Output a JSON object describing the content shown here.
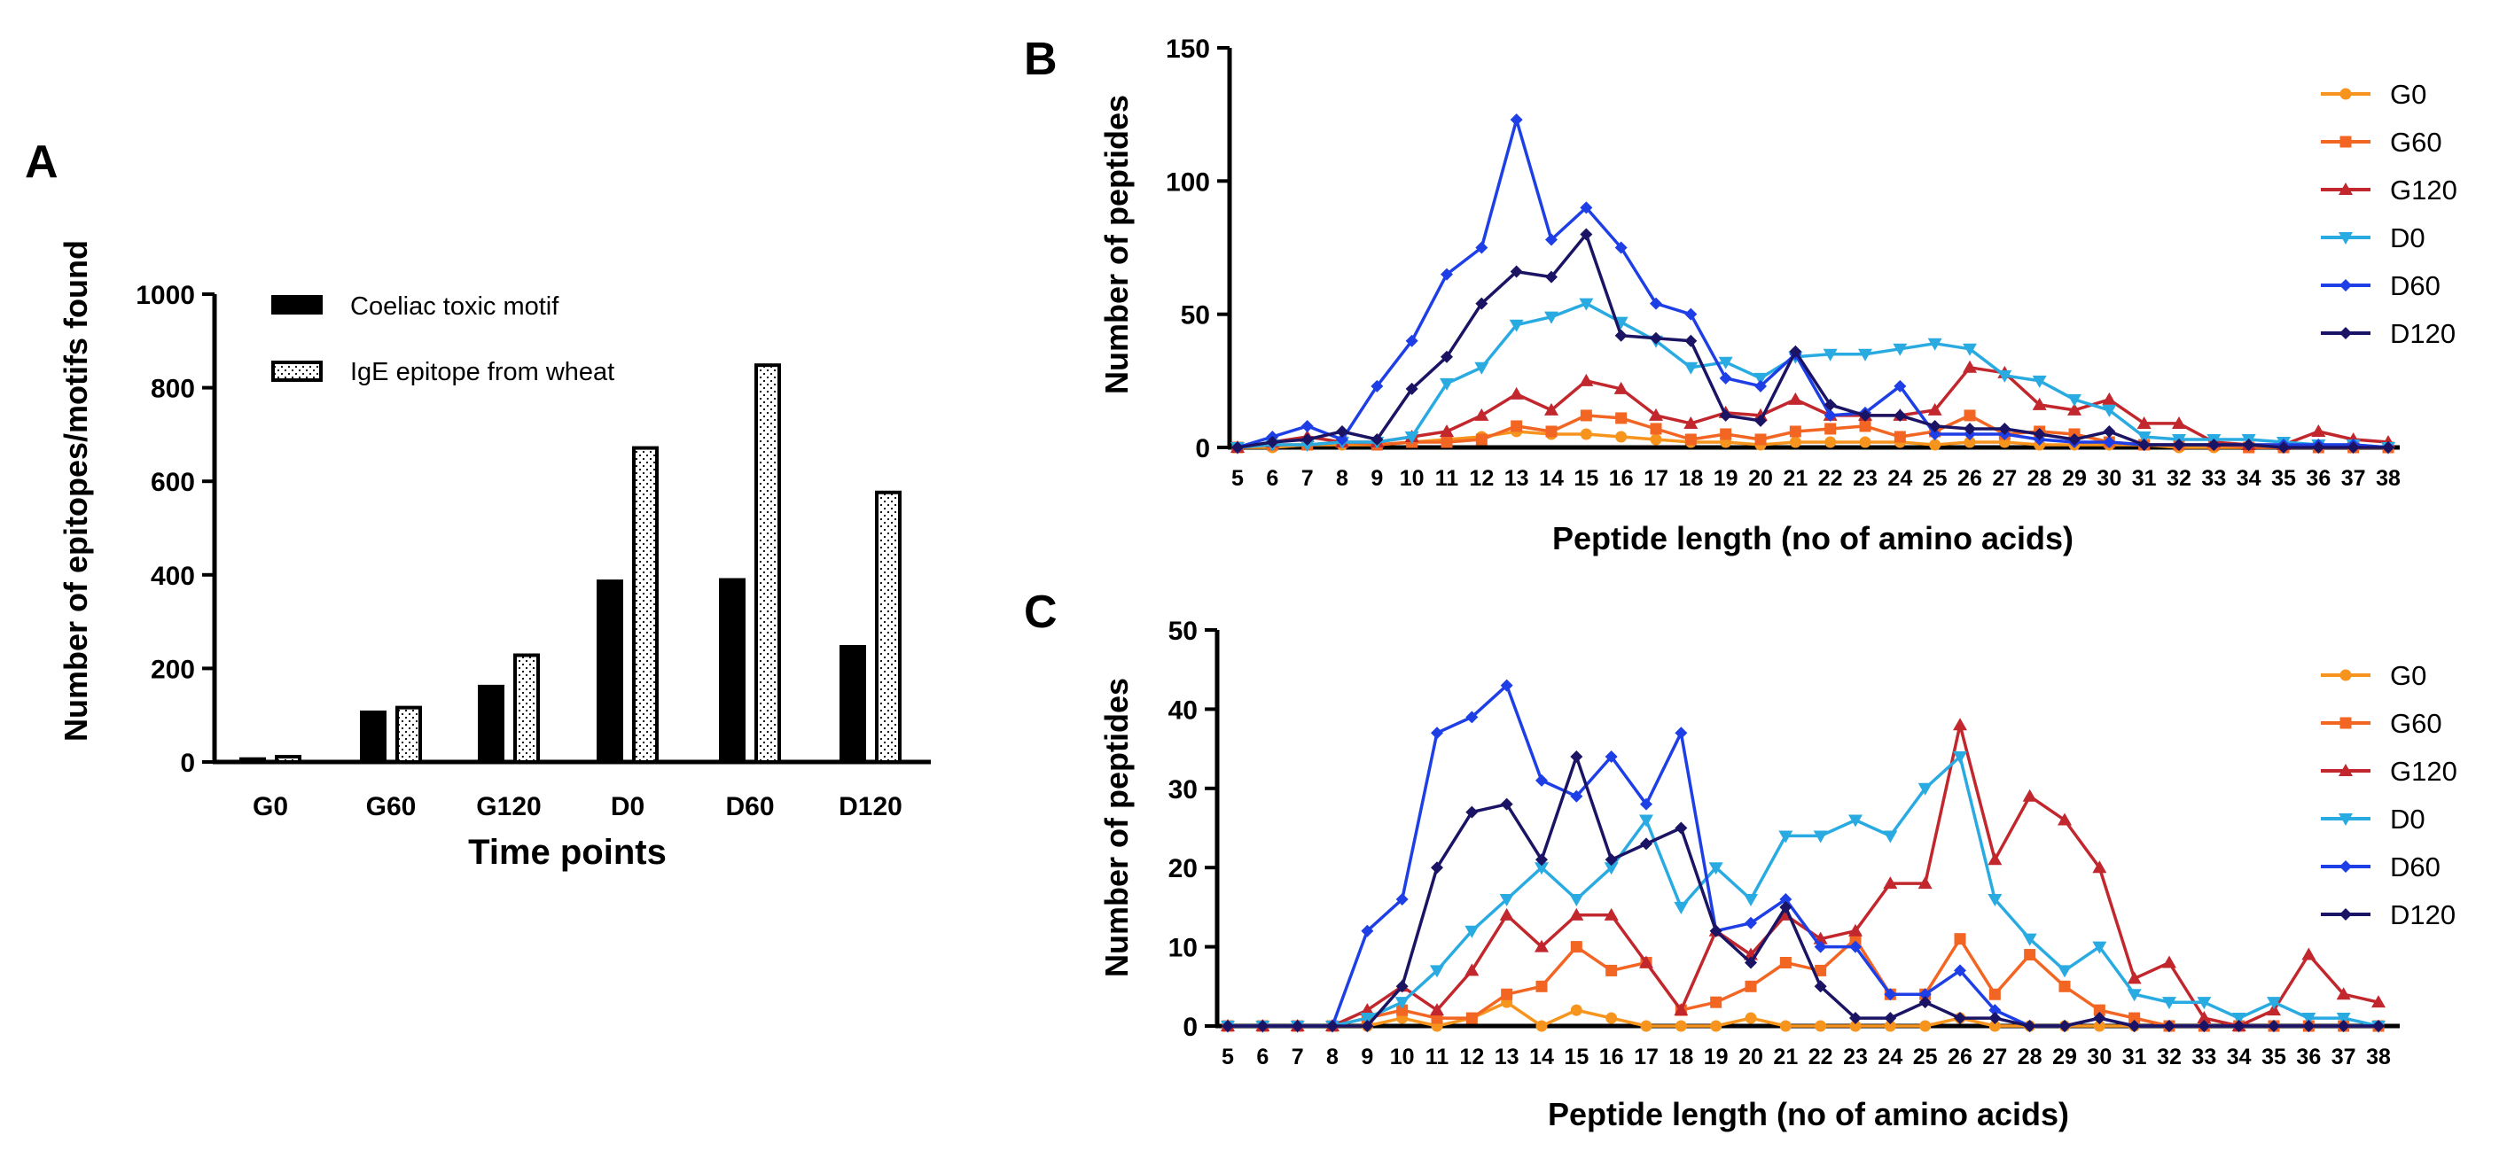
{
  "colors": {
    "G0": "#f7941d",
    "G60": "#f26522",
    "G120": "#c1272d",
    "D0": "#29abe2",
    "D60": "#2e3192",
    "D120": "#1b1464",
    "D60_bright": "#1e3fe6"
  },
  "chart_data": [
    {
      "panel": "A",
      "type": "bar",
      "xlabel": "Time points",
      "ylabel": "Number of epitopes/motifs found",
      "ylim": [
        0,
        1000
      ],
      "yticks": [
        "0",
        "200",
        "400",
        "600",
        "800",
        "1000"
      ],
      "categories": [
        "G0",
        "G60",
        "G120",
        "D0",
        "D60",
        "D120"
      ],
      "series": [
        {
          "name": "Coeliac toxic motif",
          "values": [
            10,
            110,
            165,
            390,
            393,
            250
          ]
        },
        {
          "name": "IgE epitope from wheat",
          "values": [
            15,
            120,
            232,
            675,
            852,
            580
          ]
        }
      ],
      "legend_position": "top-left"
    },
    {
      "panel": "B",
      "type": "line",
      "xlabel": "Peptide length (no of amino acids)",
      "ylabel": "Number of peptides",
      "ylim": [
        0,
        150
      ],
      "yticks": [
        "0",
        "50",
        "100",
        "150"
      ],
      "x": [
        "5",
        "6",
        "7",
        "8",
        "9",
        "10",
        "11",
        "12",
        "13",
        "14",
        "15",
        "16",
        "17",
        "18",
        "19",
        "20",
        "21",
        "22",
        "23",
        "24",
        "25",
        "26",
        "27",
        "28",
        "29",
        "30",
        "31",
        "32",
        "33",
        "34",
        "35",
        "36",
        "37",
        "38"
      ],
      "legend_position": "right",
      "series": [
        {
          "name": "G0",
          "marker": "circle",
          "values": [
            0,
            0,
            1,
            1,
            1,
            2,
            3,
            4,
            6,
            5,
            5,
            4,
            3,
            2,
            2,
            1,
            2,
            2,
            2,
            2,
            1,
            2,
            2,
            1,
            1,
            1,
            1,
            0,
            0,
            0,
            0,
            0,
            0,
            0
          ]
        },
        {
          "name": "G60",
          "marker": "square",
          "values": [
            0,
            1,
            1,
            2,
            1,
            2,
            2,
            3,
            8,
            6,
            12,
            11,
            7,
            3,
            5,
            3,
            6,
            7,
            8,
            4,
            6,
            12,
            5,
            6,
            5,
            2,
            1,
            1,
            1,
            0,
            0,
            0,
            0,
            0
          ]
        },
        {
          "name": "G120",
          "marker": "triangle-up",
          "values": [
            0,
            2,
            4,
            2,
            2,
            4,
            6,
            12,
            20,
            14,
            25,
            22,
            12,
            9,
            13,
            12,
            18,
            12,
            12,
            12,
            14,
            30,
            28,
            16,
            14,
            18,
            9,
            9,
            2,
            1,
            1,
            6,
            3,
            2
          ]
        },
        {
          "name": "D0",
          "marker": "triangle-down",
          "values": [
            0,
            1,
            1,
            2,
            2,
            4,
            24,
            30,
            46,
            49,
            54,
            47,
            40,
            30,
            32,
            26,
            34,
            35,
            35,
            37,
            39,
            37,
            27,
            25,
            18,
            14,
            4,
            3,
            3,
            3,
            2,
            1,
            1,
            0
          ]
        },
        {
          "name": "D60",
          "marker": "diamond",
          "values": [
            0,
            4,
            8,
            3,
            23,
            40,
            65,
            75,
            123,
            78,
            90,
            75,
            54,
            50,
            26,
            23,
            35,
            12,
            13,
            23,
            5,
            5,
            5,
            3,
            2,
            2,
            1,
            1,
            1,
            1,
            1,
            1,
            1,
            0
          ]
        },
        {
          "name": "D120",
          "marker": "diamond",
          "values": [
            0,
            2,
            3,
            6,
            3,
            22,
            34,
            54,
            66,
            64,
            80,
            42,
            41,
            40,
            12,
            10,
            36,
            16,
            12,
            12,
            8,
            7,
            7,
            5,
            3,
            6,
            1,
            1,
            1,
            1,
            0,
            0,
            0,
            0
          ]
        }
      ]
    },
    {
      "panel": "C",
      "type": "line",
      "xlabel": "Peptide length (no of amino acids)",
      "ylabel": "Number of peptides",
      "ylim": [
        0,
        50
      ],
      "yticks": [
        "0",
        "10",
        "20",
        "30",
        "40",
        "50"
      ],
      "x": [
        "5",
        "6",
        "7",
        "8",
        "9",
        "10",
        "11",
        "12",
        "13",
        "14",
        "15",
        "16",
        "17",
        "18",
        "19",
        "20",
        "21",
        "22",
        "23",
        "24",
        "25",
        "26",
        "27",
        "28",
        "29",
        "30",
        "31",
        "32",
        "33",
        "34",
        "35",
        "36",
        "37",
        "38"
      ],
      "legend_position": "right",
      "series": [
        {
          "name": "G0",
          "marker": "circle",
          "values": [
            0,
            0,
            0,
            0,
            0,
            1,
            0,
            1,
            3,
            0,
            2,
            1,
            0,
            0,
            0,
            1,
            0,
            0,
            0,
            0,
            0,
            1,
            0,
            0,
            0,
            0,
            0,
            0,
            0,
            0,
            0,
            0,
            0,
            0
          ]
        },
        {
          "name": "G60",
          "marker": "square",
          "values": [
            0,
            0,
            0,
            0,
            1,
            2,
            1,
            1,
            4,
            5,
            10,
            7,
            8,
            2,
            3,
            5,
            8,
            7,
            11,
            4,
            4,
            11,
            4,
            9,
            5,
            2,
            1,
            0,
            0,
            0,
            0,
            0,
            0,
            0
          ]
        },
        {
          "name": "G120",
          "marker": "triangle-up",
          "values": [
            0,
            0,
            0,
            0,
            2,
            5,
            2,
            7,
            14,
            10,
            14,
            14,
            8,
            2,
            12,
            9,
            14,
            11,
            12,
            18,
            18,
            38,
            21,
            29,
            26,
            20,
            6,
            8,
            1,
            0,
            2,
            9,
            4,
            3
          ]
        },
        {
          "name": "D0",
          "marker": "triangle-down",
          "values": [
            0,
            0,
            0,
            0,
            1,
            3,
            7,
            12,
            16,
            20,
            16,
            20,
            26,
            15,
            20,
            16,
            24,
            24,
            26,
            24,
            30,
            34,
            16,
            11,
            7,
            10,
            4,
            3,
            3,
            1,
            3,
            1,
            1,
            0
          ]
        },
        {
          "name": "D60",
          "marker": "diamond",
          "values": [
            0,
            0,
            0,
            0,
            12,
            16,
            37,
            39,
            43,
            31,
            29,
            34,
            28,
            37,
            12,
            13,
            16,
            10,
            10,
            4,
            4,
            7,
            2,
            0,
            0,
            1,
            0,
            0,
            0,
            0,
            0,
            0,
            0,
            0
          ]
        },
        {
          "name": "D120",
          "marker": "diamond",
          "values": [
            0,
            0,
            0,
            0,
            0,
            5,
            20,
            27,
            28,
            21,
            34,
            21,
            23,
            25,
            12,
            8,
            15,
            5,
            1,
            1,
            3,
            1,
            1,
            0,
            0,
            1,
            0,
            0,
            0,
            0,
            0,
            0,
            0,
            0
          ]
        }
      ]
    }
  ]
}
